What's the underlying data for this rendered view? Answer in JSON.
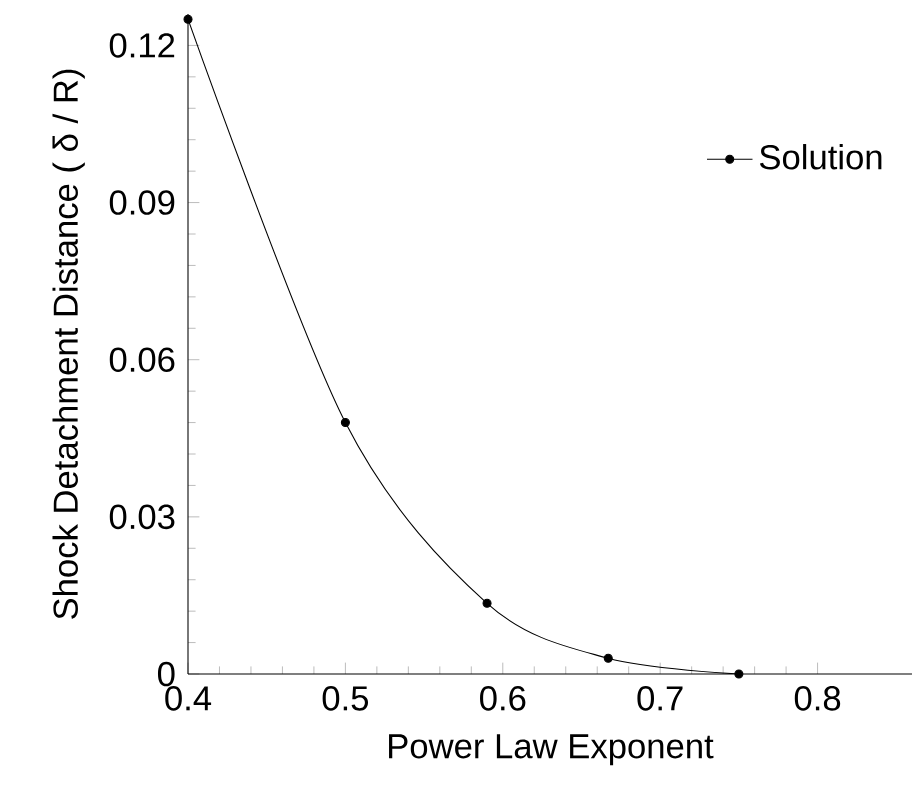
{
  "chart_data": {
    "type": "line",
    "xlabel": "Power Law Exponent",
    "ylabel": "Shock Detachment Distance ( δ / R)",
    "x": [
      0.4,
      0.5,
      0.59,
      0.667,
      0.75
    ],
    "series": [
      {
        "name": "Solution",
        "color": "#000000",
        "values": [
          0.125,
          0.048,
          0.0135,
          0.003,
          0.0
        ]
      }
    ],
    "xlim": [
      0.4,
      0.86
    ],
    "ylim": [
      0,
      0.126
    ],
    "xticks": [
      0.4,
      0.5,
      0.6,
      0.7,
      0.8
    ],
    "yticks": [
      0,
      0.03,
      0.06,
      0.09,
      0.12
    ],
    "grid": false,
    "legend": "top right",
    "marker": "circle",
    "line_style": "solid"
  }
}
